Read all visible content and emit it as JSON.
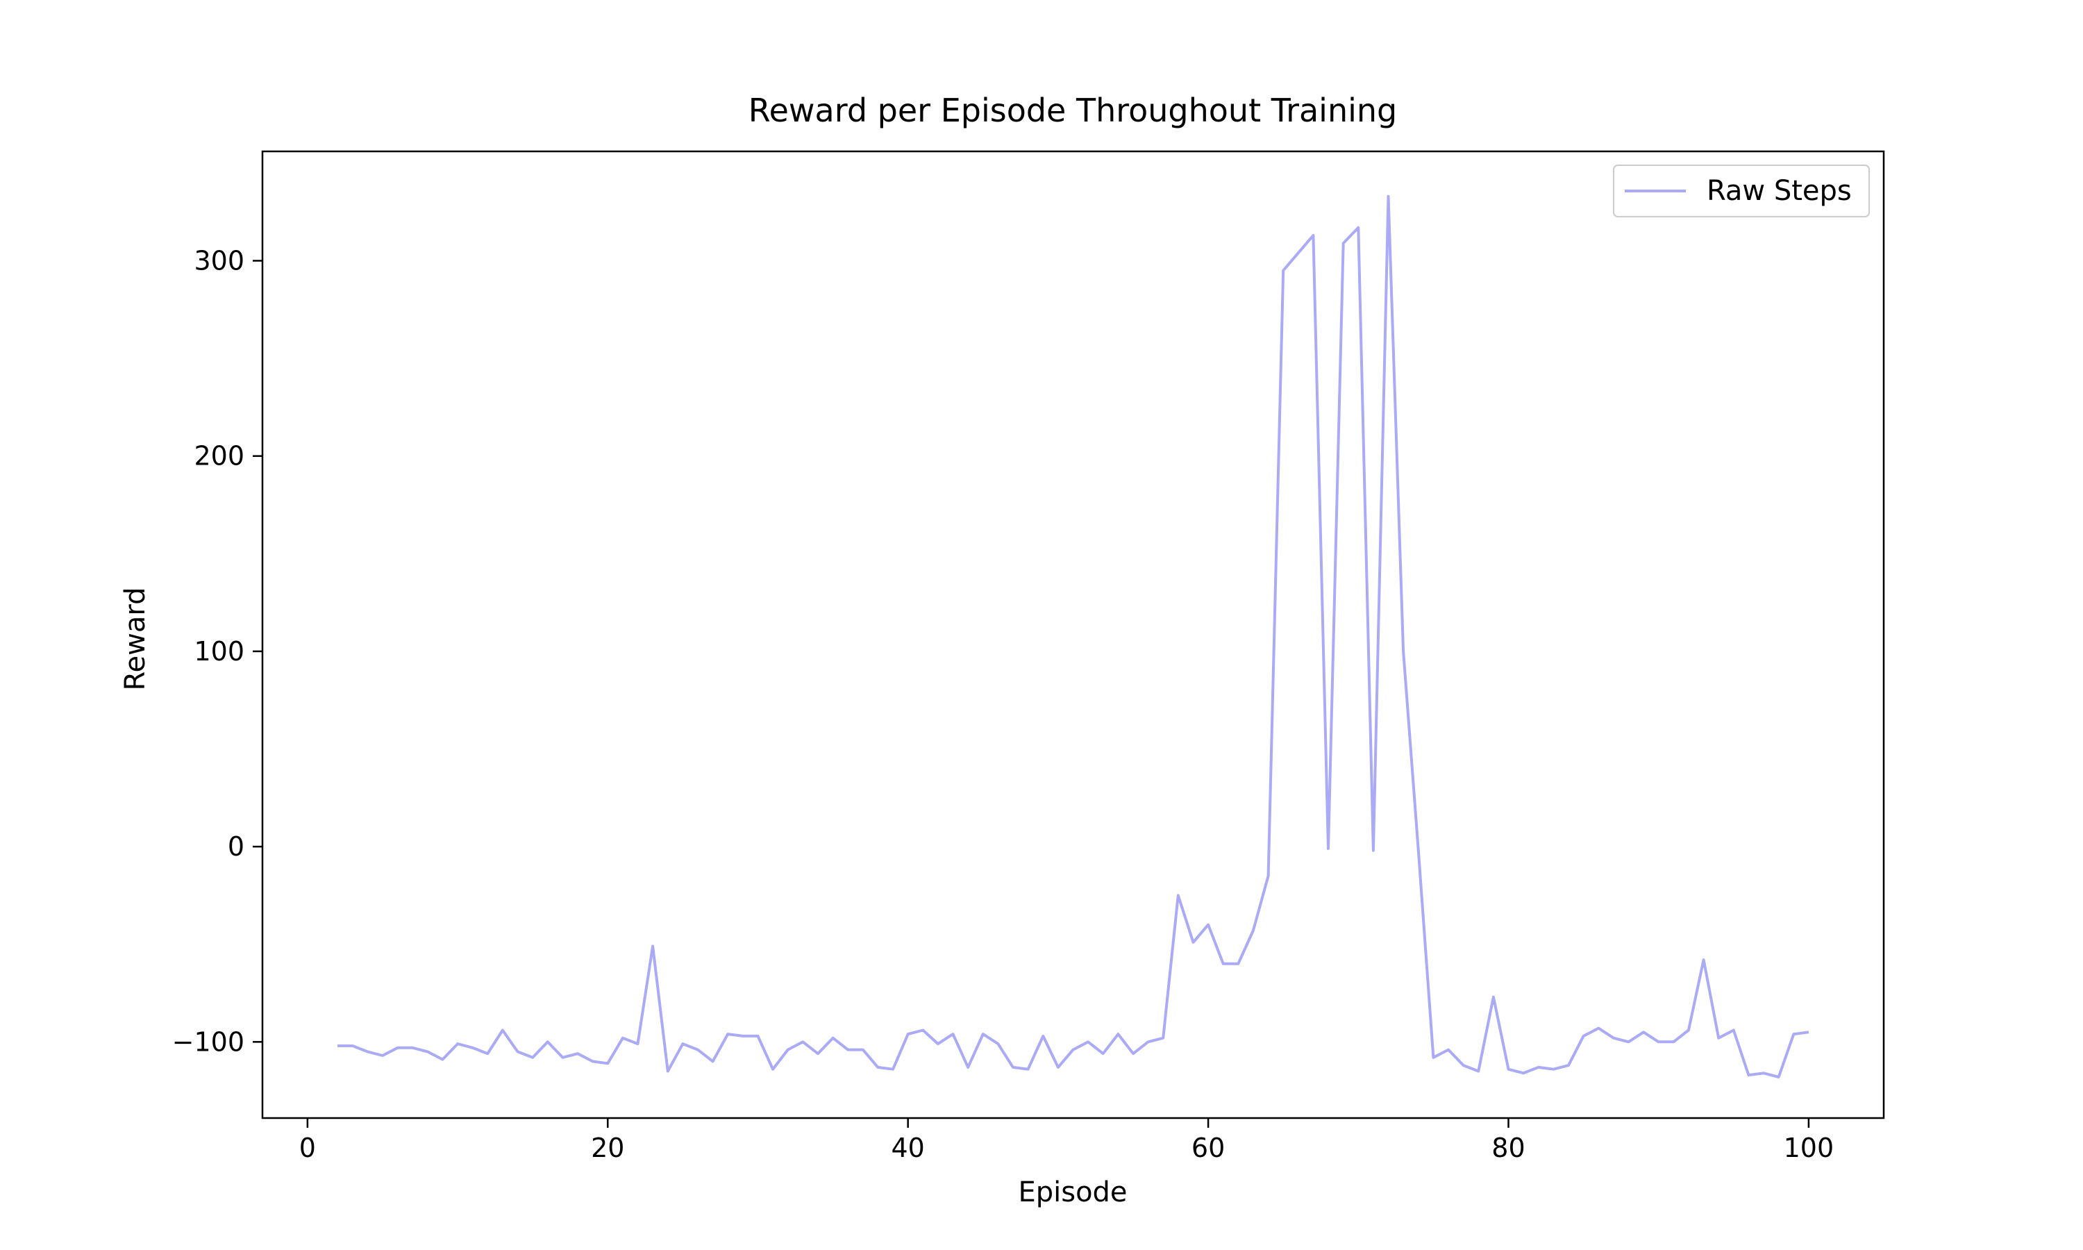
{
  "chart_data": {
    "type": "line",
    "title": "Reward per Episode Throughout Training",
    "xlabel": "Episode",
    "ylabel": "Reward",
    "xlim": [
      -3,
      105
    ],
    "ylim": [
      -139,
      356
    ],
    "xticks": [
      0,
      20,
      40,
      60,
      80,
      100
    ],
    "yticks": [
      -100,
      0,
      100,
      200,
      300
    ],
    "ytick_labels": [
      "−100",
      "0",
      "100",
      "200",
      "300"
    ],
    "grid": false,
    "legend_position": "top-right",
    "series": [
      {
        "name": "Raw Steps",
        "color": "#aaaaf6",
        "x": [
          2,
          3,
          4,
          5,
          6,
          7,
          8,
          9,
          10,
          11,
          12,
          13,
          14,
          15,
          16,
          17,
          18,
          19,
          20,
          21,
          22,
          23,
          24,
          25,
          26,
          27,
          28,
          29,
          30,
          31,
          32,
          33,
          34,
          35,
          36,
          37,
          38,
          39,
          40,
          41,
          42,
          43,
          44,
          45,
          46,
          47,
          48,
          49,
          50,
          51,
          52,
          53,
          54,
          55,
          56,
          57,
          58,
          59,
          60,
          61,
          62,
          63,
          64,
          65,
          66,
          67,
          68,
          69,
          70,
          71,
          72,
          73,
          74,
          75,
          76,
          77,
          78,
          79,
          80,
          81,
          82,
          83,
          84,
          85,
          86,
          87,
          88,
          89,
          90,
          91,
          92,
          93,
          94,
          95,
          96,
          97,
          98,
          99,
          100
        ],
        "values": [
          -102,
          -102,
          -105,
          -107,
          -103,
          -103,
          -105,
          -109,
          -101,
          -103,
          -106,
          -94,
          -105,
          -108,
          -100,
          -108,
          -106,
          -110,
          -111,
          -98,
          -101,
          -51,
          -115,
          -101,
          -104,
          -110,
          -96,
          -97,
          -97,
          -114,
          -104,
          -100,
          -106,
          -98,
          -104,
          -104,
          -113,
          -114,
          -96,
          -94,
          -101,
          -96,
          -113,
          -96,
          -101,
          -113,
          -114,
          -97,
          -113,
          -104,
          -100,
          -106,
          -96,
          -106,
          -100,
          -98,
          -25,
          -49,
          -40,
          -60,
          -60,
          -43,
          -15,
          295,
          304,
          313,
          -1,
          309,
          317,
          -2,
          333,
          100,
          -2,
          -108,
          -104,
          -112,
          -115,
          -77,
          -114,
          -116,
          -113,
          -114,
          -112,
          -97,
          -93,
          -98,
          -100,
          -95,
          -100,
          -100,
          -94,
          -58,
          -98,
          -94,
          -117,
          -116,
          -118,
          -96,
          -95
        ]
      }
    ]
  }
}
